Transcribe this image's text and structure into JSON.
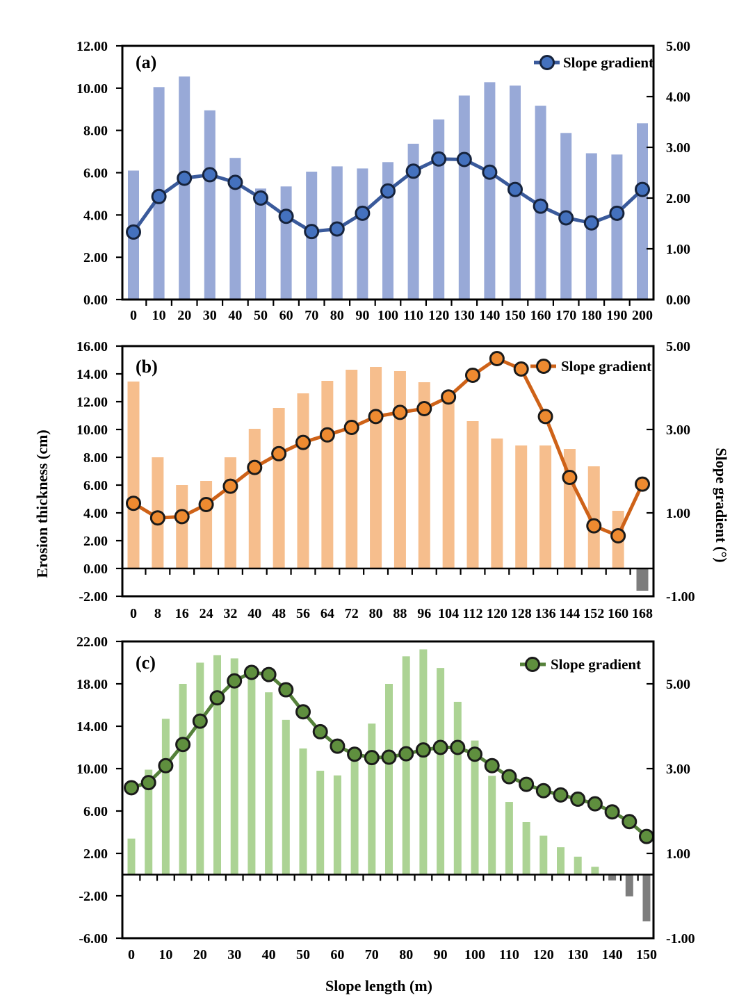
{
  "figure": {
    "ylabel_left": "Erosion thickness (cm)",
    "ylabel_right": "Slope gradient (°)",
    "xlabel": "Slope length (m)",
    "legend_label": "Slope gradient"
  },
  "chart_data": [
    {
      "type": "bar+line",
      "panel_label": "(a)",
      "bar_series": "Erosion thickness (cm)",
      "line_series": "Slope gradient (°)",
      "x_values": [
        0,
        10,
        20,
        30,
        40,
        50,
        60,
        70,
        80,
        90,
        100,
        110,
        120,
        130,
        140,
        150,
        160,
        170,
        180,
        190,
        200
      ],
      "bar_values": [
        6.1,
        10.05,
        10.55,
        8.95,
        6.7,
        5.25,
        5.35,
        6.05,
        6.3,
        6.2,
        6.5,
        7.37,
        8.52,
        9.65,
        10.28,
        10.12,
        9.17,
        7.88,
        6.92,
        6.86,
        8.34
      ],
      "line_values": [
        1.33,
        2.03,
        2.39,
        2.46,
        2.31,
        2.0,
        1.64,
        1.34,
        1.39,
        1.7,
        2.14,
        2.53,
        2.77,
        2.76,
        2.51,
        2.17,
        1.84,
        1.61,
        1.51,
        1.7,
        2.17
      ],
      "left_axis": {
        "min": 0,
        "max": 12,
        "tick_labels": [
          "0.00",
          "2.00",
          "4.00",
          "6.00",
          "8.00",
          "10.00",
          "12.00"
        ]
      },
      "right_axis": {
        "min": 0,
        "max": 5,
        "tick_labels": [
          "0.00",
          "1.00",
          "2.00",
          "3.00",
          "4.00",
          "5.00"
        ]
      },
      "x_tick_labels": [
        "0",
        "10",
        "20",
        "30",
        "40",
        "50",
        "60",
        "70",
        "80",
        "90",
        "100",
        "110",
        "120",
        "130",
        "140",
        "150",
        "160",
        "170",
        "180",
        "190",
        "200"
      ],
      "x_label_every": 1,
      "colors": {
        "bar": "#98A9D7",
        "line": "#3A5A9B",
        "marker": "#4471BE",
        "marker_edge": "#16233C",
        "negative_bar": "#7D7D7D"
      }
    },
    {
      "type": "bar+line",
      "panel_label": "(b)",
      "bar_series": "Erosion thickness (cm)",
      "line_series": "Slope gradient (°)",
      "x_values": [
        0,
        8,
        16,
        24,
        32,
        40,
        48,
        56,
        64,
        72,
        80,
        88,
        96,
        104,
        112,
        120,
        128,
        136,
        144,
        152,
        160,
        168
      ],
      "bar_values": [
        13.45,
        8.0,
        6.0,
        6.3,
        8.0,
        10.05,
        11.55,
        12.6,
        13.5,
        14.3,
        14.5,
        14.2,
        13.4,
        12.1,
        10.6,
        9.35,
        8.85,
        8.85,
        8.6,
        7.35,
        4.15,
        -1.6
      ],
      "line_values": [
        1.23,
        0.88,
        0.91,
        1.2,
        1.64,
        2.09,
        2.42,
        2.69,
        2.87,
        3.05,
        3.31,
        3.41,
        3.5,
        3.78,
        4.3,
        4.7,
        4.45,
        3.31,
        1.85,
        0.69,
        0.45,
        1.69
      ],
      "left_axis": {
        "min": -2,
        "max": 16,
        "tick_labels": [
          "-2.00",
          "0.00",
          "2.00",
          "4.00",
          "6.00",
          "8.00",
          "10.00",
          "12.00",
          "14.00",
          "16.00"
        ]
      },
      "right_axis": {
        "min": -1,
        "max": 5,
        "tick_labels": [
          "-1.00",
          "1.00",
          "3.00",
          "5.00"
        ]
      },
      "x_tick_labels": [
        "0",
        "8",
        "16",
        "24",
        "32",
        "40",
        "48",
        "56",
        "64",
        "72",
        "80",
        "88",
        "96",
        "104",
        "112",
        "120",
        "128",
        "136",
        "144",
        "152",
        "160",
        "168"
      ],
      "x_label_every": 1,
      "colors": {
        "bar": "#F6BE8D",
        "line": "#CE6218",
        "marker": "#EE8A30",
        "marker_edge": "#1A1A1A",
        "negative_bar": "#7D7D7D"
      }
    },
    {
      "type": "bar+line",
      "panel_label": "(c)",
      "bar_series": "Erosion thickness (cm)",
      "line_series": "Slope gradient (°)",
      "x_values": [
        0,
        5,
        10,
        15,
        20,
        25,
        30,
        35,
        40,
        45,
        50,
        55,
        60,
        65,
        70,
        75,
        80,
        85,
        90,
        95,
        100,
        105,
        110,
        115,
        120,
        125,
        130,
        135,
        140,
        145,
        150
      ],
      "bar_values": [
        3.4,
        9.9,
        14.7,
        18.0,
        20.0,
        20.7,
        20.4,
        19.3,
        17.2,
        14.6,
        11.9,
        9.8,
        9.36,
        10.7,
        14.25,
        18.0,
        20.6,
        21.25,
        19.5,
        16.3,
        12.65,
        9.32,
        6.85,
        4.95,
        3.67,
        2.58,
        1.69,
        0.74,
        -0.55,
        -2.05,
        -4.4
      ],
      "line_values": [
        2.55,
        2.67,
        3.07,
        3.57,
        4.12,
        4.67,
        5.07,
        5.27,
        5.22,
        4.86,
        4.34,
        3.87,
        3.53,
        3.34,
        3.26,
        3.27,
        3.35,
        3.44,
        3.5,
        3.5,
        3.34,
        3.07,
        2.81,
        2.63,
        2.48,
        2.38,
        2.28,
        2.17,
        1.98,
        1.75,
        1.4
      ],
      "left_axis": {
        "min": -6,
        "max": 22,
        "tick_labels": [
          "-6.00",
          "-2.00",
          "2.00",
          "6.00",
          "10.00",
          "14.00",
          "18.00",
          "22.00"
        ]
      },
      "right_axis": {
        "min": -1,
        "max": 5,
        "tick_labels": [
          "-1.00",
          "1.00",
          "3.00",
          "5.00"
        ]
      },
      "x_tick_labels": [
        "0",
        "10",
        "20",
        "30",
        "40",
        "50",
        "60",
        "70",
        "80",
        "90",
        "100",
        "110",
        "120",
        "130",
        "140",
        "150"
      ],
      "x_label_every": 2,
      "colors": {
        "bar": "#ACD394",
        "line": "#55813A",
        "marker": "#5F8F3E",
        "marker_edge": "#1A1A1A",
        "negative_bar": "#7D7D7D"
      }
    }
  ]
}
